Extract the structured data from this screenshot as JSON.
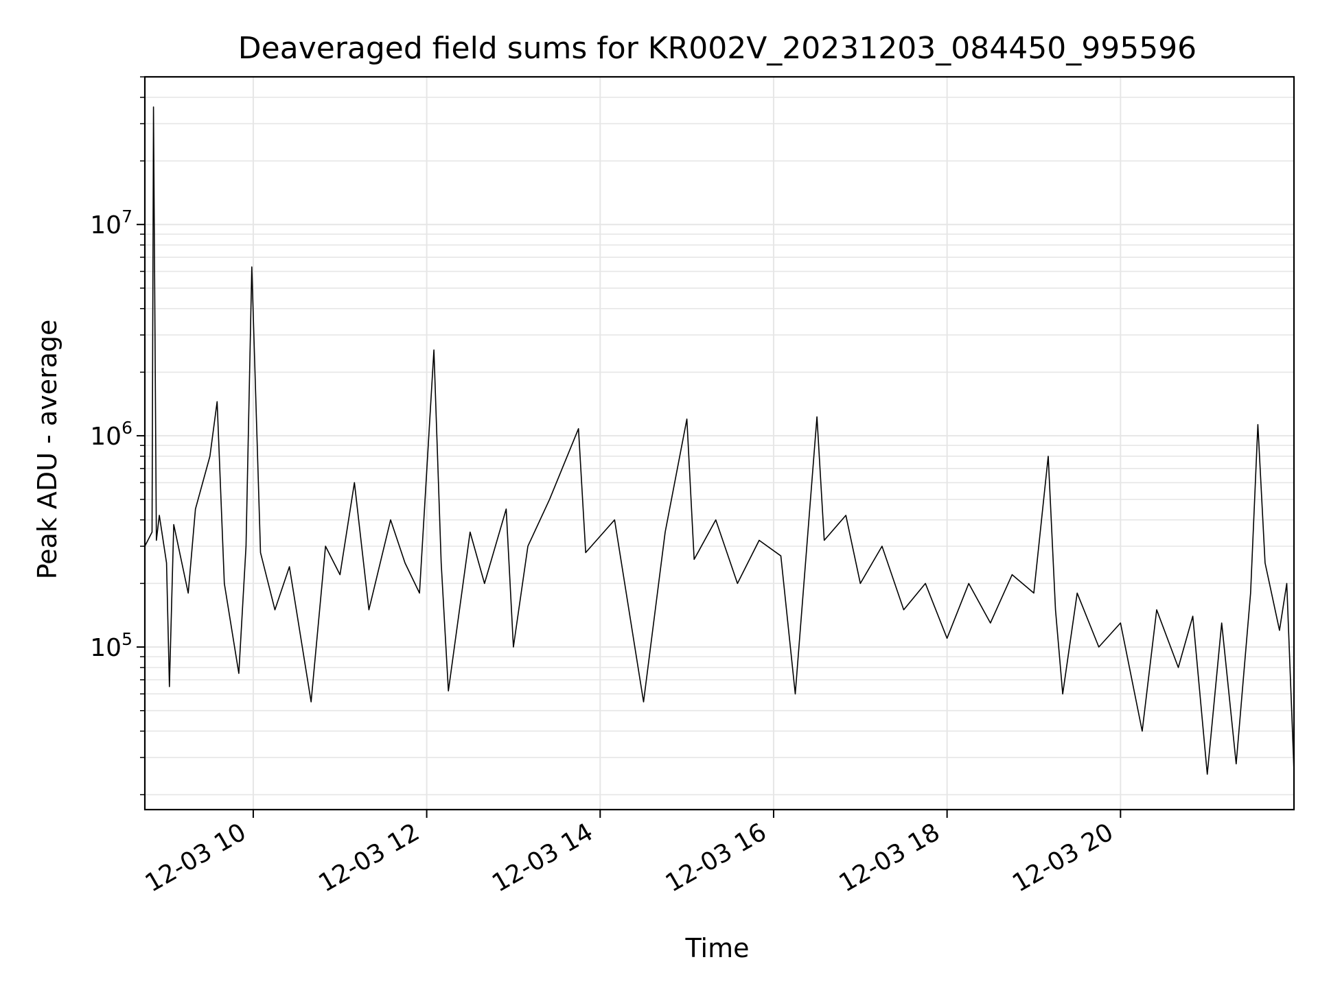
{
  "chart_data": {
    "type": "line",
    "title": "Deaveraged field sums for KR002V_20231203_084450_995596",
    "xlabel": "Time",
    "ylabel": "Peak ADU - average",
    "x_scale": "time",
    "y_scale": "log",
    "xlim": [
      "12-03 08:45",
      "12-03 22:00"
    ],
    "ylim": [
      17000,
      50000000
    ],
    "grid": true,
    "line_color": "#000000",
    "grid_color": "#e6e6e6",
    "x_ticks": [
      {
        "value": "12-03 10:00",
        "label": "12-03 10"
      },
      {
        "value": "12-03 12:00",
        "label": "12-03 12"
      },
      {
        "value": "12-03 14:00",
        "label": "12-03 14"
      },
      {
        "value": "12-03 16:00",
        "label": "12-03 16"
      },
      {
        "value": "12-03 18:00",
        "label": "12-03 18"
      },
      {
        "value": "12-03 20:00",
        "label": "12-03 20"
      }
    ],
    "y_ticks": [
      {
        "value": 100000,
        "base": "10",
        "exp": "5"
      },
      {
        "value": 1000000,
        "base": "10",
        "exp": "6"
      },
      {
        "value": 10000000,
        "base": "10",
        "exp": "7"
      }
    ],
    "series": [
      {
        "values": [
          [
            "12-03 08:45",
            300000
          ],
          [
            "12-03 08:50",
            350000
          ],
          [
            "12-03 08:51",
            36000000
          ],
          [
            "12-03 08:53",
            320000
          ],
          [
            "12-03 08:55",
            420000
          ],
          [
            "12-03 09:00",
            250000
          ],
          [
            "12-03 09:02",
            65000
          ],
          [
            "12-03 09:05",
            380000
          ],
          [
            "12-03 09:15",
            180000
          ],
          [
            "12-03 09:20",
            450000
          ],
          [
            "12-03 09:30",
            800000
          ],
          [
            "12-03 09:35",
            1450000
          ],
          [
            "12-03 09:40",
            200000
          ],
          [
            "12-03 09:50",
            75000
          ],
          [
            "12-03 09:55",
            300000
          ],
          [
            "12-03 09:59",
            6300000
          ],
          [
            "12-03 10:05",
            280000
          ],
          [
            "12-03 10:15",
            150000
          ],
          [
            "12-03 10:25",
            240000
          ],
          [
            "12-03 10:40",
            55000
          ],
          [
            "12-03 10:50",
            300000
          ],
          [
            "12-03 11:00",
            220000
          ],
          [
            "12-03 11:10",
            600000
          ],
          [
            "12-03 11:20",
            150000
          ],
          [
            "12-03 11:35",
            400000
          ],
          [
            "12-03 11:45",
            250000
          ],
          [
            "12-03 11:55",
            180000
          ],
          [
            "12-03 12:05",
            2550000
          ],
          [
            "12-03 12:10",
            250000
          ],
          [
            "12-03 12:15",
            62000
          ],
          [
            "12-03 12:30",
            350000
          ],
          [
            "12-03 12:40",
            200000
          ],
          [
            "12-03 12:55",
            450000
          ],
          [
            "12-03 13:00",
            100000
          ],
          [
            "12-03 13:10",
            300000
          ],
          [
            "12-03 13:25",
            500000
          ],
          [
            "12-03 13:45",
            1080000
          ],
          [
            "12-03 13:50",
            280000
          ],
          [
            "12-03 14:10",
            400000
          ],
          [
            "12-03 14:30",
            55000
          ],
          [
            "12-03 14:45",
            350000
          ],
          [
            "12-03 15:00",
            1200000
          ],
          [
            "12-03 15:05",
            260000
          ],
          [
            "12-03 15:20",
            400000
          ],
          [
            "12-03 15:35",
            200000
          ],
          [
            "12-03 15:50",
            320000
          ],
          [
            "12-03 16:05",
            270000
          ],
          [
            "12-03 16:15",
            60000
          ],
          [
            "12-03 16:30",
            1230000
          ],
          [
            "12-03 16:35",
            320000
          ],
          [
            "12-03 16:50",
            420000
          ],
          [
            "12-03 17:00",
            200000
          ],
          [
            "12-03 17:15",
            300000
          ],
          [
            "12-03 17:30",
            150000
          ],
          [
            "12-03 17:45",
            200000
          ],
          [
            "12-03 18:00",
            110000
          ],
          [
            "12-03 18:15",
            200000
          ],
          [
            "12-03 18:30",
            130000
          ],
          [
            "12-03 18:45",
            220000
          ],
          [
            "12-03 19:00",
            180000
          ],
          [
            "12-03 19:10",
            800000
          ],
          [
            "12-03 19:15",
            150000
          ],
          [
            "12-03 19:20",
            60000
          ],
          [
            "12-03 19:30",
            180000
          ],
          [
            "12-03 19:45",
            100000
          ],
          [
            "12-03 20:00",
            130000
          ],
          [
            "12-03 20:15",
            40000
          ],
          [
            "12-03 20:25",
            150000
          ],
          [
            "12-03 20:40",
            80000
          ],
          [
            "12-03 20:50",
            140000
          ],
          [
            "12-03 21:00",
            25000
          ],
          [
            "12-03 21:10",
            130000
          ],
          [
            "12-03 21:20",
            28000
          ],
          [
            "12-03 21:30",
            180000
          ],
          [
            "12-03 21:35",
            1130000
          ],
          [
            "12-03 21:40",
            250000
          ],
          [
            "12-03 21:50",
            120000
          ],
          [
            "12-03 21:55",
            200000
          ],
          [
            "12-03 22:00",
            26000
          ]
        ]
      }
    ]
  }
}
